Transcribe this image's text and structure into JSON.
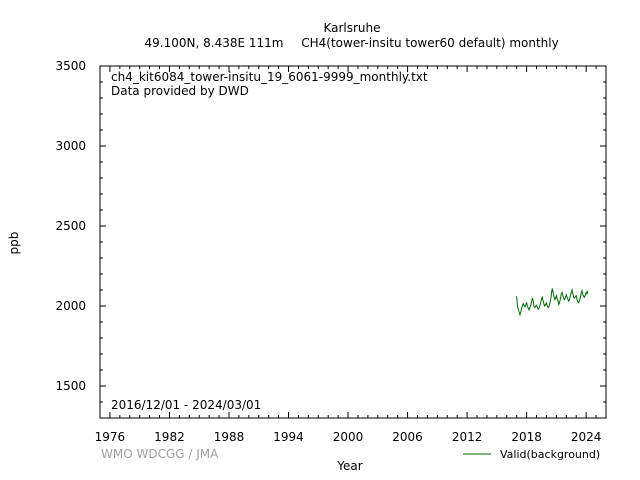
{
  "chart_data": {
    "type": "line",
    "title": "Karlsruhe",
    "subtitle_left": "49.100N, 8.438E 111m",
    "subtitle_right": "CH4(tower-insitu tower60 default) monthly",
    "file_label": "ch4_kit6084_tower-insitu_19_6061-9999_monthly.txt",
    "provider_label": "Data provided by DWD",
    "date_range_label": "2016/12/01 - 2024/03/01",
    "credit": "WMO WDCGG / JMA",
    "xlabel": "Year",
    "ylabel": "ppb",
    "xlim": [
      1975,
      2026
    ],
    "ylim": [
      1300,
      3500
    ],
    "x_ticks": [
      1976,
      1982,
      1988,
      1994,
      2000,
      2006,
      2012,
      2018,
      2024
    ],
    "y_ticks": [
      1500,
      2000,
      2500,
      3000,
      3500
    ],
    "grid": false,
    "legend_position": "bottom-right",
    "series": [
      {
        "name": "Valid(background)",
        "color": "#006400",
        "x": [
          2016.92,
          2017.0,
          2017.08,
          2017.17,
          2017.25,
          2017.33,
          2017.42,
          2017.5,
          2017.58,
          2017.67,
          2017.75,
          2017.83,
          2017.92,
          2018.0,
          2018.08,
          2018.17,
          2018.25,
          2018.33,
          2018.42,
          2018.5,
          2018.58,
          2018.67,
          2018.75,
          2018.83,
          2018.92,
          2019.0,
          2019.08,
          2019.17,
          2019.25,
          2019.33,
          2019.42,
          2019.5,
          2019.58,
          2019.67,
          2019.75,
          2019.83,
          2019.92,
          2020.0,
          2020.08,
          2020.17,
          2020.25,
          2020.33,
          2020.42,
          2020.5,
          2020.58,
          2020.67,
          2020.75,
          2020.83,
          2020.92,
          2021.0,
          2021.08,
          2021.17,
          2021.25,
          2021.33,
          2021.42,
          2021.5,
          2021.58,
          2021.67,
          2021.75,
          2021.83,
          2021.92,
          2022.0,
          2022.08,
          2022.17,
          2022.25,
          2022.33,
          2022.42,
          2022.5,
          2022.58,
          2022.67,
          2022.75,
          2022.83,
          2022.92,
          2023.0,
          2023.08,
          2023.17,
          2023.25,
          2023.33,
          2023.42,
          2023.5,
          2023.58,
          2023.67,
          2023.75,
          2023.83,
          2023.92,
          2024.0,
          2024.08,
          2024.17
        ],
        "y": [
          2060,
          2055,
          2000,
          1975,
          1960,
          1945,
          1965,
          1985,
          2005,
          2015,
          2000,
          1995,
          2010,
          2020,
          2000,
          1985,
          1975,
          1990,
          2005,
          2025,
          2050,
          2030,
          1995,
          1990,
          2000,
          2005,
          1990,
          1980,
          1985,
          2000,
          2020,
          2045,
          2055,
          2030,
          2010,
          2000,
          2010,
          2020,
          2000,
          1990,
          1995,
          2015,
          2040,
          2075,
          2110,
          2085,
          2060,
          2040,
          2050,
          2065,
          2045,
          2030,
          2010,
          2025,
          2050,
          2080,
          2085,
          2060,
          2045,
          2040,
          2055,
          2070,
          2055,
          2040,
          2030,
          2045,
          2065,
          2085,
          2100,
          2075,
          2055,
          2050,
          2060,
          2065,
          2040,
          2025,
          2020,
          2035,
          2055,
          2080,
          2095,
          2070,
          2060,
          2055,
          2070,
          2085,
          2075,
          2095
        ]
      }
    ]
  }
}
